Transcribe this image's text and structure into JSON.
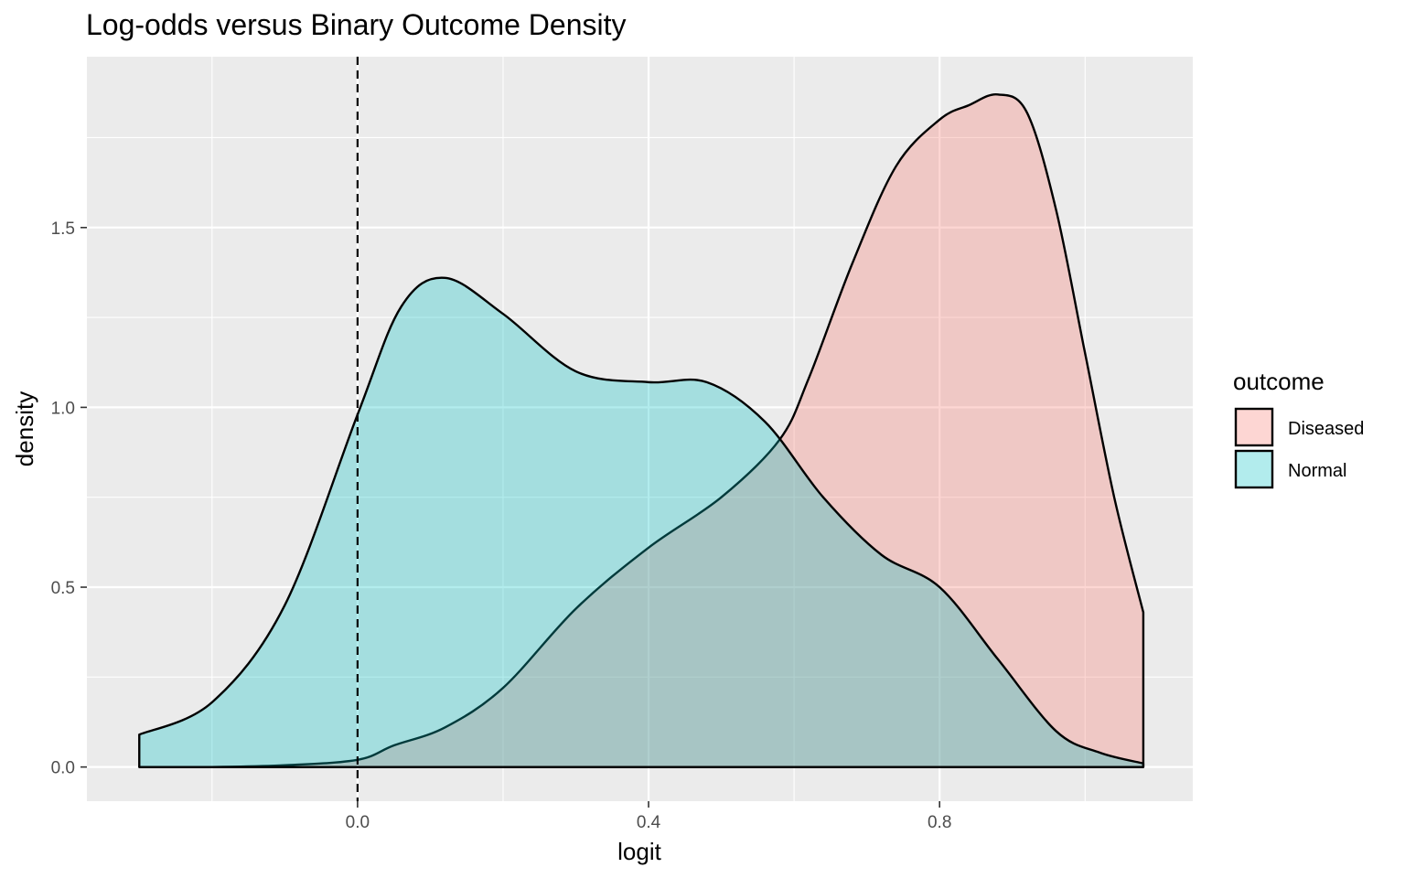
{
  "chart_data": {
    "type": "area",
    "title": "Log-odds versus Binary Outcome Density",
    "xlabel": "logit",
    "ylabel": "density",
    "xlim": [
      -0.372,
      1.148
    ],
    "ylim": [
      -0.095,
      1.975
    ],
    "x_ticks": [
      0.0,
      0.4,
      0.8
    ],
    "x_tick_labels": [
      "0.0",
      "0.4",
      "0.8"
    ],
    "y_ticks": [
      0.0,
      0.5,
      1.0,
      1.5
    ],
    "y_tick_labels": [
      "0.0",
      "0.5",
      "1.0",
      "1.5"
    ],
    "grid": true,
    "reference_line": {
      "x": 0.0,
      "style": "dashed"
    },
    "legend": {
      "title": "outcome",
      "placement": "right",
      "entries": [
        "Diseased",
        "Normal"
      ]
    },
    "series": [
      {
        "name": "Diseased",
        "color": "#F8766D",
        "x": [
          -0.3,
          -0.2,
          -0.1,
          0.0,
          0.05,
          0.12,
          0.2,
          0.3,
          0.4,
          0.5,
          0.58,
          0.62,
          0.68,
          0.74,
          0.8,
          0.84,
          0.88,
          0.92,
          0.96,
          1.0,
          1.04,
          1.08
        ],
        "values": [
          0.0,
          0.0,
          0.005,
          0.02,
          0.06,
          0.11,
          0.22,
          0.44,
          0.61,
          0.75,
          0.91,
          1.08,
          1.4,
          1.67,
          1.8,
          1.84,
          1.87,
          1.82,
          1.55,
          1.15,
          0.75,
          0.43
        ]
      },
      {
        "name": "Normal",
        "color": "#00BFC4",
        "x": [
          -0.3,
          -0.2,
          -0.1,
          0.0,
          0.06,
          0.12,
          0.2,
          0.3,
          0.4,
          0.48,
          0.56,
          0.64,
          0.72,
          0.8,
          0.88,
          0.96,
          1.02,
          1.08
        ],
        "values": [
          0.09,
          0.18,
          0.45,
          0.98,
          1.28,
          1.36,
          1.26,
          1.1,
          1.07,
          1.07,
          0.96,
          0.75,
          0.59,
          0.5,
          0.3,
          0.1,
          0.04,
          0.01
        ]
      }
    ]
  }
}
